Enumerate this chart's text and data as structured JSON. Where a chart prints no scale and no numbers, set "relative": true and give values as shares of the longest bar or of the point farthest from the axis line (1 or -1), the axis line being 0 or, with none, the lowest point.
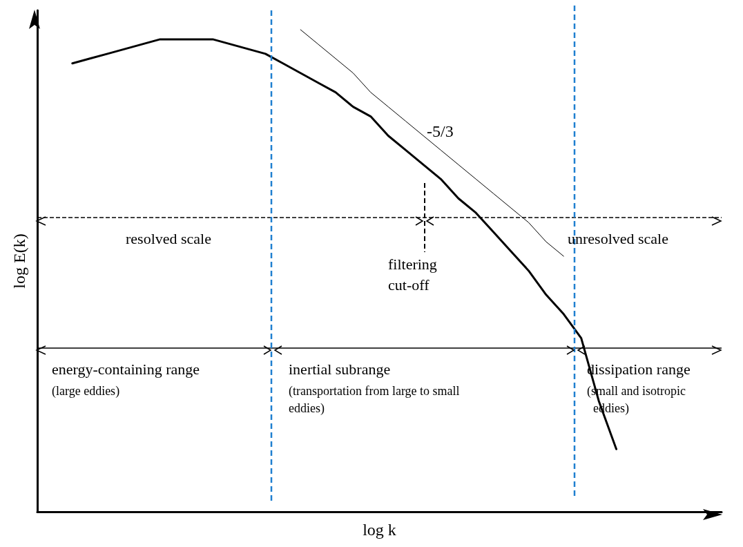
{
  "chart_data": {
    "type": "line",
    "relative": true,
    "xlabel": "log k",
    "ylabel": "log E(k)",
    "grid": false,
    "categories": [
      null,
      null,
      null,
      null,
      null,
      null,
      null,
      null,
      null,
      null,
      null,
      null,
      null,
      null,
      null,
      null,
      null,
      null,
      null,
      null,
      null,
      null,
      null,
      null,
      null,
      null,
      null,
      null,
      null,
      null,
      null,
      null,
      null,
      null,
      null,
      null,
      null,
      null,
      null,
      null
    ],
    "series": [
      {
        "color": "#000000",
        "values": [
          null,
          null,
          0.93,
          0.94,
          0.95,
          0.96,
          0.97,
          0.98,
          0.98,
          0.98,
          0.98,
          0.97,
          0.96,
          0.95,
          0.93,
          0.91,
          0.89,
          0.87,
          0.84,
          0.82,
          0.78,
          0.75,
          0.72,
          0.69,
          0.65,
          0.62,
          0.58,
          0.54,
          0.5,
          0.45,
          0.41,
          0.36,
          0.23,
          0.13,
          null,
          null,
          null,
          null,
          null,
          null
        ]
      },
      {
        "color": "#000000",
        "values": [
          null,
          null,
          null,
          null,
          null,
          null,
          null,
          null,
          null,
          null,
          null,
          null,
          null,
          null,
          null,
          1.0,
          0.97,
          0.94,
          0.91,
          0.87,
          0.84,
          0.81,
          0.78,
          0.75,
          0.72,
          0.69,
          0.66,
          0.63,
          0.6,
          0.56,
          0.53,
          null,
          null,
          null,
          null,
          null,
          null,
          null,
          null,
          null
        ]
      }
    ],
    "ref_lines": [
      {
        "axis": "y",
        "value": 0.61,
        "color": "#000000",
        "line_style": "dashed"
      },
      {
        "axis": "y",
        "value": 0.34,
        "color": "#000000",
        "line_style": "solid"
      }
    ],
    "annotations": [
      "-5/3",
      "resolved scale",
      "unresolved scale",
      "filtering\ncut-off",
      "energy-containing range\n(large eddies)",
      "inertial subrange\n(transportation from large to small\neddies)",
      "dissipation range\n(small and isotropic\n  eddies)"
    ]
  }
}
